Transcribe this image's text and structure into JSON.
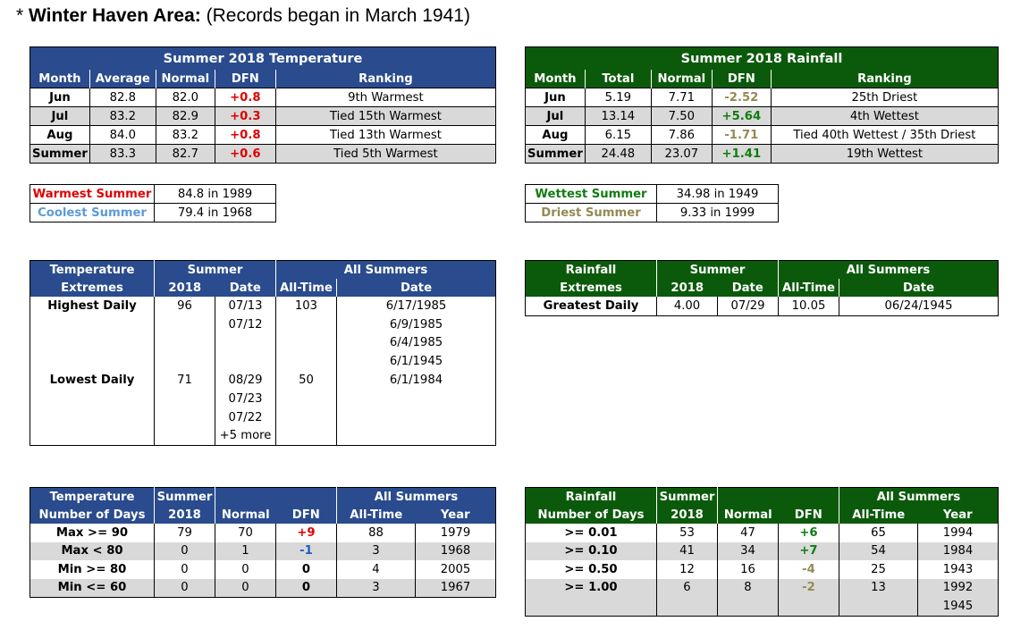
{
  "title": {
    "star": "*",
    "bold": "Winter Haven Area:",
    "rest": "(Records began in March 1941)"
  },
  "temp": {
    "title": "Summer 2018 Temperature",
    "headers": [
      "Month",
      "Average",
      "Normal",
      "DFN",
      "Ranking"
    ],
    "rows": [
      {
        "month": "Jun",
        "avg": "82.8",
        "normal": "82.0",
        "dfn": "+0.8",
        "rank": "9th Warmest"
      },
      {
        "month": "Jul",
        "avg": "83.2",
        "normal": "82.9",
        "dfn": "+0.3",
        "rank": "Tied 15th Warmest"
      },
      {
        "month": "Aug",
        "avg": "84.0",
        "normal": "83.2",
        "dfn": "+0.8",
        "rank": "Tied 13th Warmest"
      },
      {
        "month": "Summer",
        "avg": "83.3",
        "normal": "82.7",
        "dfn": "+0.6",
        "rank": "Tied 5th Warmest"
      }
    ]
  },
  "rain": {
    "title": "Summer 2018 Rainfall",
    "headers": [
      "Month",
      "Total",
      "Normal",
      "DFN",
      "Ranking"
    ],
    "rows": [
      {
        "month": "Jun",
        "total": "5.19",
        "normal": "7.71",
        "dfn": "-2.52",
        "rank": "25th Driest"
      },
      {
        "month": "Jul",
        "total": "13.14",
        "normal": "7.50",
        "dfn": "+5.64",
        "rank": "4th Wettest"
      },
      {
        "month": "Aug",
        "total": "6.15",
        "normal": "7.86",
        "dfn": "-1.71",
        "rank": "Tied 40th Wettest / 35th Driest"
      },
      {
        "month": "Summer",
        "total": "24.48",
        "normal": "23.07",
        "dfn": "+1.41",
        "rank": "19th Wettest"
      }
    ]
  },
  "temp_records": {
    "warmest_label": "Warmest Summer",
    "warmest_value": "84.8 in 1989",
    "coolest_label": "Coolest Summer",
    "coolest_value": "79.4 in 1968"
  },
  "rain_records": {
    "wettest_label": "Wettest Summer",
    "wettest_value": "34.98 in 1949",
    "driest_label": "Driest Summer",
    "driest_value": "9.33 in 1999"
  },
  "temp_extremes": {
    "h1": [
      "Temperature",
      "Summer",
      "All Summers"
    ],
    "h2": [
      "Extremes",
      "2018",
      "Date",
      "All-Time",
      "Date"
    ],
    "highest_label": "Highest Daily",
    "highest_value": "96",
    "highest_dates": [
      "07/13",
      "07/12"
    ],
    "highest_alltime": "103",
    "highest_alltime_dates": [
      "6/17/1985",
      "6/9/1985",
      "6/4/1985",
      "6/1/1945"
    ],
    "lowest_label": "Lowest Daily",
    "lowest_value": "71",
    "lowest_dates": [
      "08/29",
      "07/23",
      "07/22",
      "+5 more"
    ],
    "lowest_alltime": "50",
    "lowest_alltime_dates": [
      "6/1/1984"
    ]
  },
  "rain_extremes": {
    "h1": [
      "Rainfall",
      "Summer",
      "All Summers"
    ],
    "h2": [
      "Extremes",
      "2018",
      "Date",
      "All-Time",
      "Date"
    ],
    "row": {
      "label": "Greatest Daily",
      "value": "4.00",
      "date": "07/29",
      "alltime": "10.05",
      "alltime_date": "06/24/1945"
    }
  },
  "temp_days": {
    "h1": [
      "Temperature",
      "Summer",
      "All Summers"
    ],
    "h2": [
      "Number of Days",
      "2018",
      "Normal",
      "DFN",
      "All-Time",
      "Year"
    ],
    "rows": [
      {
        "label": "Max >= 90",
        "v": "79",
        "normal": "70",
        "dfn": "+9",
        "alltime": "88",
        "year": "1979"
      },
      {
        "label": "Max < 80",
        "v": "0",
        "normal": "1",
        "dfn": "-1",
        "alltime": "3",
        "year": "1968"
      },
      {
        "label": "Min >= 80",
        "v": "0",
        "normal": "0",
        "dfn": "0",
        "alltime": "4",
        "year": "2005"
      },
      {
        "label": "Min <= 60",
        "v": "0",
        "normal": "0",
        "dfn": "0",
        "alltime": "3",
        "year": "1967"
      }
    ]
  },
  "rain_days": {
    "h1": [
      "Rainfall",
      "Summer",
      "All Summers"
    ],
    "h2": [
      "Number of Days",
      "2018",
      "Normal",
      "DFN",
      "All-Time",
      "Year"
    ],
    "rows": [
      {
        "label": ">= 0.01",
        "v": "53",
        "normal": "47",
        "dfn": "+6",
        "alltime": "65",
        "year": "1994"
      },
      {
        "label": ">= 0.10",
        "v": "41",
        "normal": "34",
        "dfn": "+7",
        "alltime": "54",
        "year": "1984"
      },
      {
        "label": ">= 0.50",
        "v": "12",
        "normal": "16",
        "dfn": "-4",
        "alltime": "25",
        "year": "1943"
      },
      {
        "label": ">= 1.00",
        "v": "6",
        "normal": "8",
        "dfn": "-2",
        "alltime": "13",
        "year": "1992"
      }
    ],
    "extra_year": "1945"
  },
  "colors": {
    "blue_header": "#2a4b8d",
    "green_header": "#0b5a0b",
    "row_gray": "#d9d9d9",
    "red": "#e00000",
    "green_text": "#107c10",
    "tan_text": "#948a54",
    "blue_text": "#1f5fc0"
  }
}
